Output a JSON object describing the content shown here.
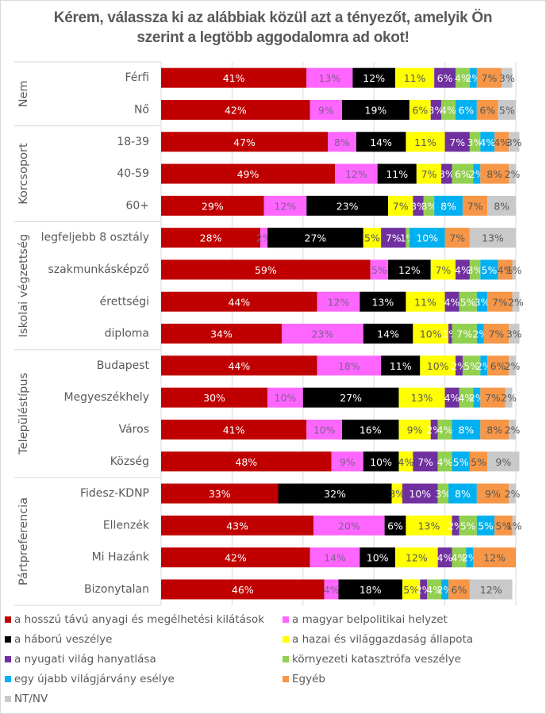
{
  "chart_data": {
    "type": "bar",
    "orientation": "horizontal",
    "stacked": "percent",
    "title": "Kérem, válassza ki az alábbiak közül azt a tényezőt, amelyik Ön szerint a legtöbb aggodalomra ad okot!",
    "xlabel": "",
    "ylabel": "",
    "xlim": [
      0,
      100
    ],
    "grid": true,
    "legend_position": "bottom",
    "groups": [
      {
        "name": "Nem",
        "categories": [
          "Férfi",
          "Nő"
        ]
      },
      {
        "name": "Korcsoport",
        "categories": [
          "18-39",
          "40-59",
          "60+"
        ]
      },
      {
        "name": "Iskolai végzettség",
        "categories": [
          "legfeljebb 8 osztály",
          "szakmunkásképző",
          "érettségi",
          "diploma"
        ]
      },
      {
        "name": "Településtípus",
        "categories": [
          "Budapest",
          "Megyeszékhely",
          "Város",
          "Község"
        ]
      },
      {
        "name": "Pártpreferencia",
        "categories": [
          "Fidesz-KDNP",
          "Ellenzék",
          "Mi Hazánk",
          "Bizonytalan"
        ]
      }
    ],
    "categories": [
      "Férfi",
      "Nő",
      "18-39",
      "40-59",
      "60+",
      "legfeljebb 8 osztály",
      "szakmunkásképző",
      "érettségi",
      "diploma",
      "Budapest",
      "Megyeszékhely",
      "Város",
      "Község",
      "Fidesz-KDNP",
      "Ellenzék",
      "Mi Hazánk",
      "Bizonytalan"
    ],
    "series": [
      {
        "name": "a hosszú távú anyagi és megélhetési kilátások",
        "color": "#c00000",
        "label_color": "#ffffff",
        "values": [
          41,
          42,
          47,
          49,
          29,
          28,
          59,
          44,
          34,
          44,
          30,
          41,
          48,
          33,
          43,
          42,
          46
        ]
      },
      {
        "name": "a magyar belpolitikai helyzet",
        "color": "#ff66ff",
        "label_color": "#7f5f8f",
        "values": [
          13,
          9,
          8,
          12,
          12,
          2,
          5,
          12,
          23,
          18,
          10,
          10,
          9,
          0,
          20,
          14,
          4
        ]
      },
      {
        "name": "a háború veszélye",
        "color": "#000000",
        "label_color": "#ffffff",
        "values": [
          12,
          19,
          14,
          11,
          23,
          27,
          12,
          13,
          14,
          11,
          27,
          16,
          10,
          32,
          6,
          10,
          18
        ]
      },
      {
        "name": "a hazai és világgazdaság állapota",
        "color": "#ffff00",
        "label_color": "#595959",
        "values": [
          11,
          6,
          11,
          7,
          7,
          5,
          7,
          11,
          10,
          10,
          13,
          9,
          4,
          3,
          13,
          12,
          5
        ]
      },
      {
        "name": "a nyugati világ hanyatlása",
        "color": "#7030a0",
        "label_color": "#ffffff",
        "values": [
          6,
          3,
          7,
          3,
          3,
          7,
          4,
          4,
          1,
          2,
          4,
          2,
          7,
          10,
          2,
          4,
          2
        ]
      },
      {
        "name": "környezeti katasztrófa veszélye",
        "color": "#92d050",
        "label_color": "#ffffff",
        "values": [
          4,
          4,
          3,
          6,
          3,
          1,
          3,
          5,
          7,
          5,
          4,
          4,
          4,
          3,
          5,
          4,
          4
        ]
      },
      {
        "name": "egy újabb világjárvány esélye",
        "color": "#00b0f0",
        "label_color": "#ffffff",
        "values": [
          2,
          6,
          4,
          2,
          8,
          10,
          5,
          3,
          2,
          2,
          2,
          8,
          5,
          8,
          5,
          2,
          2
        ]
      },
      {
        "name": "Egyéb",
        "color": "#f79646",
        "label_color": "#595959",
        "values": [
          7,
          6,
          4,
          8,
          7,
          7,
          4,
          7,
          7,
          6,
          7,
          8,
          5,
          9,
          5,
          12,
          6
        ]
      },
      {
        "name": "NT/NV",
        "color": "#c9c9c9",
        "label_color": "#595959",
        "values": [
          3,
          5,
          3,
          2,
          8,
          13,
          1,
          2,
          3,
          2,
          2,
          2,
          9,
          2,
          1,
          0,
          12
        ]
      }
    ]
  }
}
